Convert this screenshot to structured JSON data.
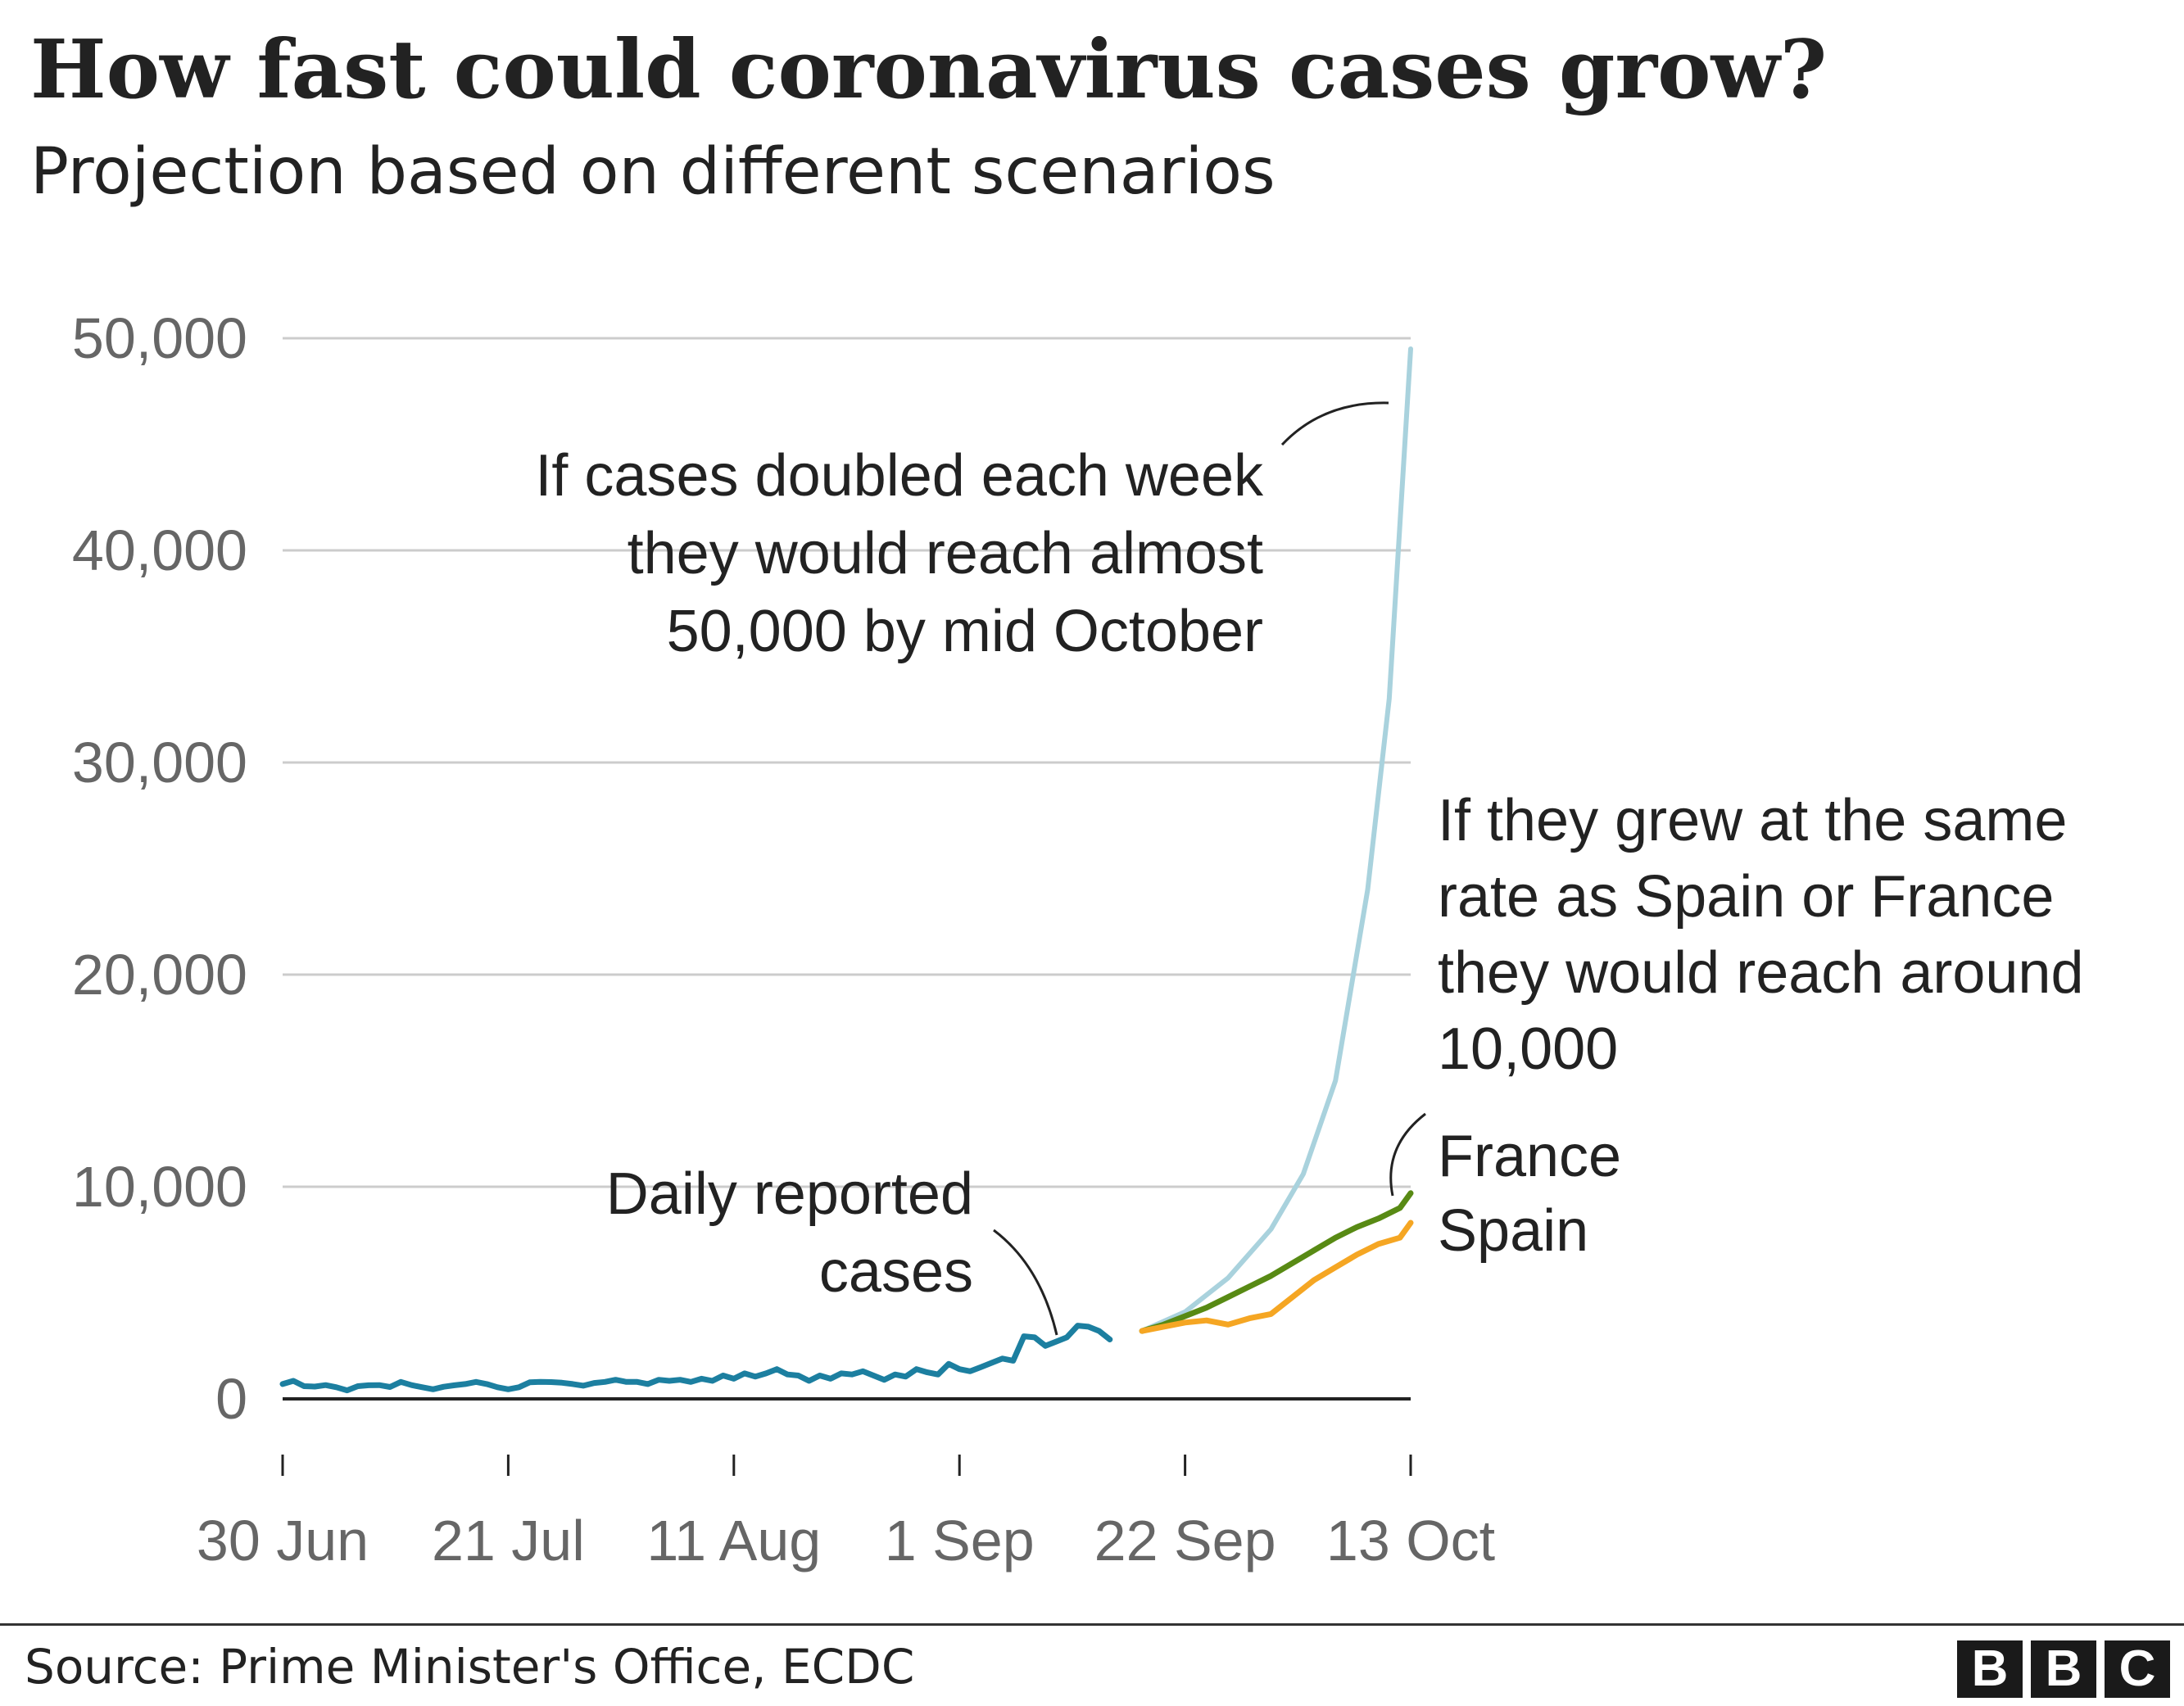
{
  "title": "How fast could coronavirus cases grow?",
  "subtitle": "Projection based on different scenarios",
  "source": "Source: Prime Minister's Office, ECDC",
  "logo_letters": [
    "B",
    "B",
    "C"
  ],
  "colors": {
    "daily": "#1c7fa0",
    "doubling": "#a9d2dd",
    "france": "#588a14",
    "spain": "#f5a623",
    "grid": "#cccccc",
    "axis": "#222222"
  },
  "chart_data": {
    "type": "line",
    "y_ticks": [
      "0",
      "10,000",
      "20,000",
      "30,000",
      "40,000",
      "50,000"
    ],
    "x_ticks": [
      "30 Jun",
      "21 Jul",
      "11 Aug",
      "1 Sep",
      "22 Sep",
      "13 Oct"
    ],
    "ylim": [
      0,
      50000
    ],
    "xlim": [
      "2020-06-30",
      "2020-10-13"
    ],
    "grid": true,
    "series": [
      {
        "key": "daily",
        "name": "Daily reported cases",
        "x": [
          "2020-06-30",
          "2020-07-01",
          "2020-07-02",
          "2020-07-03",
          "2020-07-04",
          "2020-07-05",
          "2020-07-06",
          "2020-07-07",
          "2020-07-08",
          "2020-07-09",
          "2020-07-10",
          "2020-07-11",
          "2020-07-12",
          "2020-07-13",
          "2020-07-14",
          "2020-07-15",
          "2020-07-16",
          "2020-07-17",
          "2020-07-18",
          "2020-07-19",
          "2020-07-20",
          "2020-07-21",
          "2020-07-22",
          "2020-07-23",
          "2020-07-24",
          "2020-07-25",
          "2020-07-26",
          "2020-07-27",
          "2020-07-28",
          "2020-07-29",
          "2020-07-30",
          "2020-07-31",
          "2020-08-01",
          "2020-08-02",
          "2020-08-03",
          "2020-08-04",
          "2020-08-05",
          "2020-08-06",
          "2020-08-07",
          "2020-08-08",
          "2020-08-09",
          "2020-08-10",
          "2020-08-11",
          "2020-08-12",
          "2020-08-13",
          "2020-08-14",
          "2020-08-15",
          "2020-08-16",
          "2020-08-17",
          "2020-08-18",
          "2020-08-19",
          "2020-08-20",
          "2020-08-21",
          "2020-08-22",
          "2020-08-23",
          "2020-08-24",
          "2020-08-25",
          "2020-08-26",
          "2020-08-27",
          "2020-08-28",
          "2020-08-29",
          "2020-08-30",
          "2020-08-31",
          "2020-09-01",
          "2020-09-02",
          "2020-09-03",
          "2020-09-04",
          "2020-09-05",
          "2020-09-06",
          "2020-09-07",
          "2020-09-08",
          "2020-09-09",
          "2020-09-10",
          "2020-09-11",
          "2020-09-12",
          "2020-09-13",
          "2020-09-14",
          "2020-09-15",
          "2020-09-16",
          "2020-09-17",
          "2020-09-18"
        ],
        "values": [
          700,
          850,
          600,
          580,
          650,
          550,
          400,
          600,
          640,
          650,
          560,
          800,
          650,
          550,
          450,
          570,
          640,
          700,
          800,
          700,
          550,
          450,
          550,
          780,
          800,
          790,
          760,
          700,
          620,
          750,
          800,
          900,
          800,
          800,
          700,
          900,
          850,
          900,
          800,
          950,
          850,
          1100,
          950,
          1200,
          1050,
          1200,
          1400,
          1150,
          1100,
          850,
          1100,
          950,
          1200,
          1150,
          1300,
          1100,
          900,
          1150,
          1050,
          1400,
          1250,
          1150,
          1650,
          1400,
          1300,
          1500,
          1700,
          1900,
          1800,
          2950,
          2900,
          2500,
          2700,
          2900,
          3450,
          3400,
          3200,
          2800,
          null,
          null,
          null
        ]
      },
      {
        "key": "doubling",
        "name": "If cases doubled each week",
        "x": [
          "2020-09-18",
          "2020-09-22",
          "2020-09-26",
          "2020-09-30",
          "2020-10-03",
          "2020-10-06",
          "2020-10-09",
          "2020-10-11",
          "2020-10-13"
        ],
        "values": [
          3200,
          4100,
          5700,
          8000,
          10600,
          15000,
          24000,
          33000,
          49500
        ]
      },
      {
        "key": "france",
        "name": "France",
        "x": [
          "2020-09-18",
          "2020-09-20",
          "2020-09-22",
          "2020-09-24",
          "2020-09-26",
          "2020-09-28",
          "2020-09-30",
          "2020-10-02",
          "2020-10-04",
          "2020-10-06",
          "2020-10-08",
          "2020-10-10",
          "2020-10-12",
          "2020-10-13"
        ],
        "values": [
          3200,
          3500,
          3900,
          4300,
          4800,
          5300,
          5800,
          6400,
          7000,
          7600,
          8100,
          8500,
          9000,
          9700
        ]
      },
      {
        "key": "spain",
        "name": "Spain",
        "x": [
          "2020-09-18",
          "2020-09-20",
          "2020-09-22",
          "2020-09-24",
          "2020-09-26",
          "2020-09-28",
          "2020-09-30",
          "2020-10-02",
          "2020-10-04",
          "2020-10-06",
          "2020-10-08",
          "2020-10-10",
          "2020-10-12",
          "2020-10-13"
        ],
        "values": [
          3200,
          3400,
          3600,
          3700,
          3500,
          3800,
          4000,
          4800,
          5600,
          6200,
          6800,
          7300,
          7600,
          8300
        ]
      }
    ],
    "annotations": {
      "doubling": [
        "If cases doubled each week",
        "they would reach almost",
        "50,000 by mid October"
      ],
      "same_rate": [
        "If they grew at the same",
        "rate as Spain or France",
        "they would reach around",
        "10,000"
      ],
      "france_label": "France",
      "spain_label": "Spain",
      "daily": [
        "Daily reported",
        "cases"
      ]
    }
  }
}
